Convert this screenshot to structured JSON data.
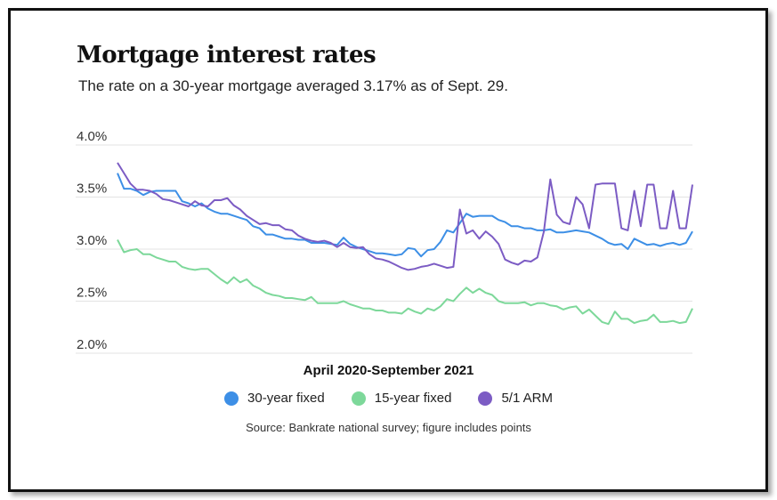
{
  "chart_data": {
    "type": "line",
    "title": "Mortgage interest rates",
    "subtitle": "The rate on a 30-year mortgage averaged 3.17% as of Sept. 29.",
    "xlabel": "April 2020-September 2021",
    "ylabel": "",
    "source": "Source: Bankrate national survey; figure includes points",
    "ylim": [
      2.0,
      4.0
    ],
    "yticks": [
      {
        "value": 4.0,
        "label": "4.0%"
      },
      {
        "value": 3.5,
        "label": "3.5%"
      },
      {
        "value": 3.0,
        "label": "3.0%"
      },
      {
        "value": 2.5,
        "label": "2.5%"
      },
      {
        "value": 2.0,
        "label": "2.0%"
      }
    ],
    "grid": true,
    "legend_position": "bottom",
    "series": [
      {
        "name": "30-year fixed",
        "color": "#3d8fe6",
        "values": [
          3.73,
          3.58,
          3.58,
          3.56,
          3.52,
          3.55,
          3.56,
          3.56,
          3.56,
          3.56,
          3.46,
          3.44,
          3.41,
          3.44,
          3.39,
          3.36,
          3.34,
          3.34,
          3.32,
          3.3,
          3.28,
          3.22,
          3.2,
          3.14,
          3.14,
          3.12,
          3.1,
          3.1,
          3.09,
          3.09,
          3.06,
          3.06,
          3.06,
          3.05,
          3.04,
          3.11,
          3.05,
          3.02,
          3.0,
          2.98,
          2.96,
          2.96,
          2.95,
          2.94,
          2.95,
          3.01,
          3.0,
          2.93,
          2.99,
          3.0,
          3.07,
          3.18,
          3.16,
          3.25,
          3.34,
          3.31,
          3.32,
          3.32,
          3.32,
          3.28,
          3.26,
          3.22,
          3.22,
          3.2,
          3.2,
          3.18,
          3.18,
          3.19,
          3.16,
          3.16,
          3.17,
          3.18,
          3.17,
          3.16,
          3.13,
          3.1,
          3.06,
          3.04,
          3.05,
          3.0,
          3.1,
          3.07,
          3.04,
          3.05,
          3.03,
          3.05,
          3.06,
          3.04,
          3.06,
          3.17
        ]
      },
      {
        "name": "15-year fixed",
        "color": "#7dd89a",
        "values": [
          3.09,
          2.97,
          2.99,
          3.0,
          2.95,
          2.95,
          2.92,
          2.9,
          2.88,
          2.88,
          2.83,
          2.81,
          2.8,
          2.81,
          2.81,
          2.76,
          2.71,
          2.67,
          2.73,
          2.68,
          2.71,
          2.65,
          2.62,
          2.58,
          2.56,
          2.55,
          2.53,
          2.53,
          2.52,
          2.51,
          2.54,
          2.48,
          2.48,
          2.48,
          2.48,
          2.5,
          2.47,
          2.45,
          2.43,
          2.43,
          2.41,
          2.41,
          2.39,
          2.39,
          2.38,
          2.43,
          2.4,
          2.38,
          2.43,
          2.41,
          2.45,
          2.52,
          2.5,
          2.57,
          2.63,
          2.58,
          2.62,
          2.58,
          2.56,
          2.5,
          2.48,
          2.48,
          2.48,
          2.49,
          2.46,
          2.48,
          2.48,
          2.46,
          2.45,
          2.42,
          2.44,
          2.45,
          2.38,
          2.42,
          2.36,
          2.3,
          2.28,
          2.4,
          2.33,
          2.33,
          2.29,
          2.31,
          2.32,
          2.37,
          2.3,
          2.3,
          2.31,
          2.29,
          2.3,
          2.43
        ]
      },
      {
        "name": "5/1 ARM",
        "color": "#7c5cc4",
        "values": [
          3.83,
          3.73,
          3.63,
          3.57,
          3.57,
          3.56,
          3.53,
          3.48,
          3.47,
          3.45,
          3.43,
          3.41,
          3.46,
          3.42,
          3.41,
          3.47,
          3.47,
          3.49,
          3.42,
          3.38,
          3.32,
          3.28,
          3.24,
          3.25,
          3.23,
          3.23,
          3.19,
          3.18,
          3.13,
          3.1,
          3.08,
          3.07,
          3.08,
          3.06,
          3.02,
          3.06,
          3.02,
          3.01,
          3.02,
          2.95,
          2.91,
          2.9,
          2.88,
          2.85,
          2.82,
          2.8,
          2.81,
          2.83,
          2.84,
          2.86,
          2.84,
          2.82,
          2.83,
          3.38,
          3.15,
          3.18,
          3.1,
          3.17,
          3.12,
          3.05,
          2.9,
          2.87,
          2.85,
          2.89,
          2.88,
          2.92,
          3.17,
          3.67,
          3.33,
          3.26,
          3.24,
          3.5,
          3.43,
          3.2,
          3.62,
          3.63,
          3.63,
          3.63,
          3.2,
          3.18,
          3.56,
          3.22,
          3.62,
          3.62,
          3.2,
          3.2,
          3.56,
          3.2,
          3.2,
          3.62
        ]
      }
    ]
  }
}
